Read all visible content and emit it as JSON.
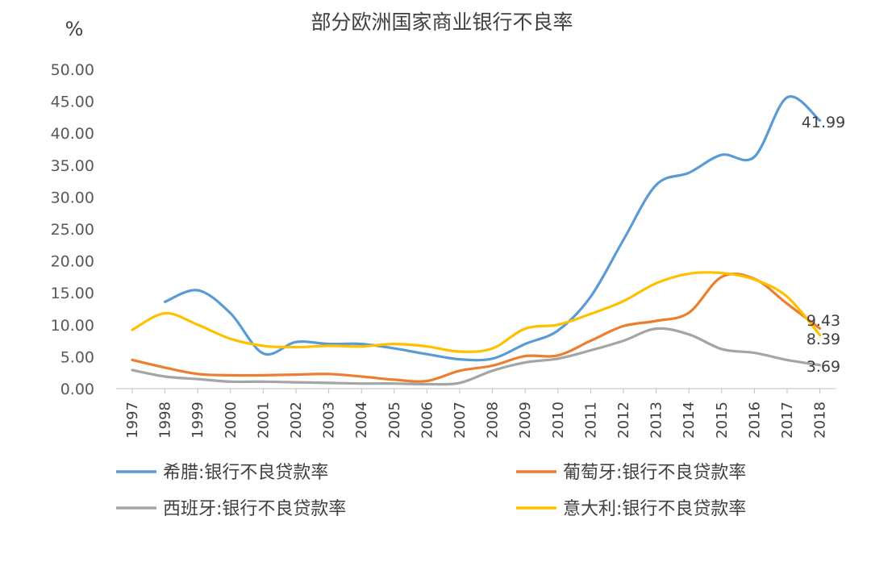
{
  "chart_data": {
    "type": "line",
    "title": "部分欧洲国家商业银行不良率",
    "unit_label": "%",
    "categories": [
      "1997",
      "1998",
      "1999",
      "2000",
      "2001",
      "2002",
      "2003",
      "2004",
      "2005",
      "2006",
      "2007",
      "2008",
      "2009",
      "2010",
      "2011",
      "2012",
      "2013",
      "2014",
      "2015",
      "2016",
      "2017",
      "2018"
    ],
    "ylim": [
      0,
      50
    ],
    "yticks": [
      "0.00",
      "5.00",
      "10.00",
      "15.00",
      "20.00",
      "25.00",
      "30.00",
      "35.00",
      "40.00",
      "45.00",
      "50.00"
    ],
    "grid": false,
    "legend_position": "bottom",
    "series": [
      {
        "name": "希腊:银行不良贷款率",
        "color": "#5b9bd5",
        "label_text": "41.99",
        "values": [
          null,
          13.6,
          15.4,
          11.8,
          5.5,
          7.3,
          7.0,
          7.0,
          6.3,
          5.4,
          4.6,
          4.7,
          7.0,
          9.1,
          14.4,
          23.3,
          31.9,
          33.8,
          36.6,
          36.3,
          45.6,
          41.99
        ]
      },
      {
        "name": "葡萄牙:银行不良贷款率",
        "color": "#ed7d31",
        "label_text": "9.43",
        "values": [
          4.5,
          3.3,
          2.3,
          2.1,
          2.1,
          2.2,
          2.3,
          1.9,
          1.4,
          1.2,
          2.8,
          3.6,
          5.1,
          5.2,
          7.5,
          9.8,
          10.6,
          11.9,
          17.5,
          17.2,
          13.3,
          9.43
        ]
      },
      {
        "name": "西班牙:银行不良贷款率",
        "color": "#a5a5a5",
        "label_text": "3.69",
        "values": [
          2.9,
          1.9,
          1.5,
          1.1,
          1.1,
          1.0,
          0.9,
          0.8,
          0.8,
          0.7,
          0.9,
          2.8,
          4.1,
          4.7,
          6.0,
          7.5,
          9.4,
          8.5,
          6.2,
          5.6,
          4.5,
          3.69
        ]
      },
      {
        "name": "意大利:银行不良贷款率",
        "color": "#ffc000",
        "label_text": "8.39",
        "values": [
          9.2,
          11.8,
          10.0,
          7.8,
          6.7,
          6.5,
          6.7,
          6.6,
          7.0,
          6.6,
          5.8,
          6.3,
          9.4,
          10.0,
          11.7,
          13.7,
          16.5,
          18.0,
          18.1,
          17.1,
          14.4,
          8.39
        ]
      }
    ]
  }
}
